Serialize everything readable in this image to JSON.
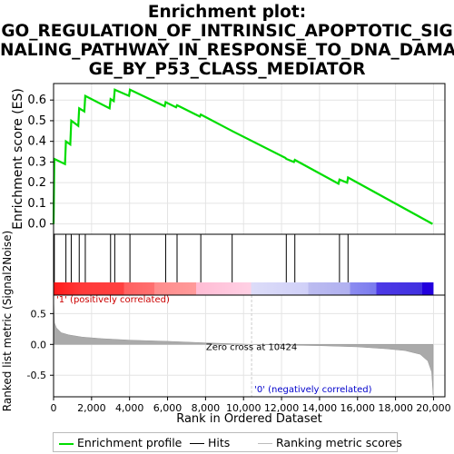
{
  "title_lines": [
    "Enrichment plot:",
    "GO_REGULATION_OF_INTRINSIC_APOPTOTIC_SIG",
    "NALING_PATHWAY_IN_RESPONSE_TO_DNA_DAMA",
    "GE_BY_P53_CLASS_MEDIATOR"
  ],
  "legend": {
    "profile_label": "Enrichment profile",
    "hits_label": "Hits",
    "metric_label": "Ranking metric scores"
  },
  "colors": {
    "profile": "#00dd00",
    "hits": "#000000",
    "metric_fill": "#aaaaaa",
    "zero_cross_line": "#cccccc",
    "pos_label": "#cc0000",
    "neg_label": "#0000cc",
    "heat_pos_strong": "#ff2222",
    "heat_neg_strong": "#2200dd"
  },
  "chart_data": [
    {
      "type": "line",
      "name": "enrichment-profile",
      "ylabel": "Enrichment score (ES)",
      "ylim": [
        -0.05,
        0.68
      ],
      "yticks": [
        0.0,
        0.1,
        0.2,
        0.3,
        0.4,
        0.5,
        0.6
      ],
      "xlim": [
        0,
        20600
      ],
      "grid": true,
      "points": [
        [
          0,
          0.0
        ],
        [
          40,
          0.315
        ],
        [
          600,
          0.29
        ],
        [
          650,
          0.4
        ],
        [
          880,
          0.385
        ],
        [
          930,
          0.5
        ],
        [
          1300,
          0.475
        ],
        [
          1350,
          0.56
        ],
        [
          1620,
          0.545
        ],
        [
          1670,
          0.62
        ],
        [
          2950,
          0.56
        ],
        [
          3000,
          0.605
        ],
        [
          3170,
          0.595
        ],
        [
          3220,
          0.65
        ],
        [
          3970,
          0.62
        ],
        [
          4020,
          0.65
        ],
        [
          5850,
          0.57
        ],
        [
          5900,
          0.59
        ],
        [
          6450,
          0.565
        ],
        [
          6500,
          0.575
        ],
        [
          7700,
          0.52
        ],
        [
          7750,
          0.53
        ],
        [
          9400,
          0.45
        ],
        [
          12200,
          0.32
        ],
        [
          12250,
          0.315
        ],
        [
          12650,
          0.3
        ],
        [
          12700,
          0.31
        ],
        [
          15000,
          0.195
        ],
        [
          15050,
          0.215
        ],
        [
          15450,
          0.2
        ],
        [
          15500,
          0.225
        ],
        [
          19950,
          0.0
        ]
      ]
    },
    {
      "type": "hits",
      "name": "gene-set-hits",
      "x": [
        40,
        650,
        930,
        1350,
        1670,
        3000,
        3220,
        4020,
        5900,
        6500,
        7750,
        9400,
        12250,
        12700,
        15050,
        15500
      ]
    },
    {
      "type": "area",
      "name": "ranked-list-metric",
      "xlabel": "Rank in Ordered Dataset",
      "ylabel": "Ranked list metric (Signal2Noise)",
      "xlim": [
        0,
        20600
      ],
      "ylim": [
        -0.85,
        0.8
      ],
      "xticks": [
        0,
        2000,
        4000,
        6000,
        8000,
        10000,
        12000,
        14000,
        16000,
        18000,
        20000
      ],
      "xtick_labels": [
        "0",
        "2,000",
        "4,000",
        "6,000",
        "8,000",
        "10,000",
        "12,000",
        "14,000",
        "16,000",
        "18,000",
        "20,000"
      ],
      "yticks": [
        0.5,
        0.0,
        -0.5
      ],
      "ytick_labels": [
        "0.5",
        "0.0",
        "-0.5"
      ],
      "curve": [
        [
          0,
          0.75
        ],
        [
          50,
          0.35
        ],
        [
          150,
          0.27
        ],
        [
          400,
          0.19
        ],
        [
          800,
          0.155
        ],
        [
          1500,
          0.12
        ],
        [
          2500,
          0.095
        ],
        [
          4000,
          0.07
        ],
        [
          6000,
          0.05
        ],
        [
          8000,
          0.025
        ],
        [
          10424,
          0.0
        ],
        [
          12000,
          -0.01
        ],
        [
          14000,
          -0.02
        ],
        [
          16000,
          -0.04
        ],
        [
          17500,
          -0.07
        ],
        [
          18500,
          -0.1
        ],
        [
          19300,
          -0.16
        ],
        [
          19700,
          -0.27
        ],
        [
          19900,
          -0.45
        ],
        [
          19980,
          -0.82
        ]
      ],
      "zero_cross_x": 10424,
      "zero_cross_label": "Zero cross at 10424",
      "pos_label": "'1' (positively correlated)",
      "neg_label": "'0' (negatively correlated)"
    }
  ]
}
